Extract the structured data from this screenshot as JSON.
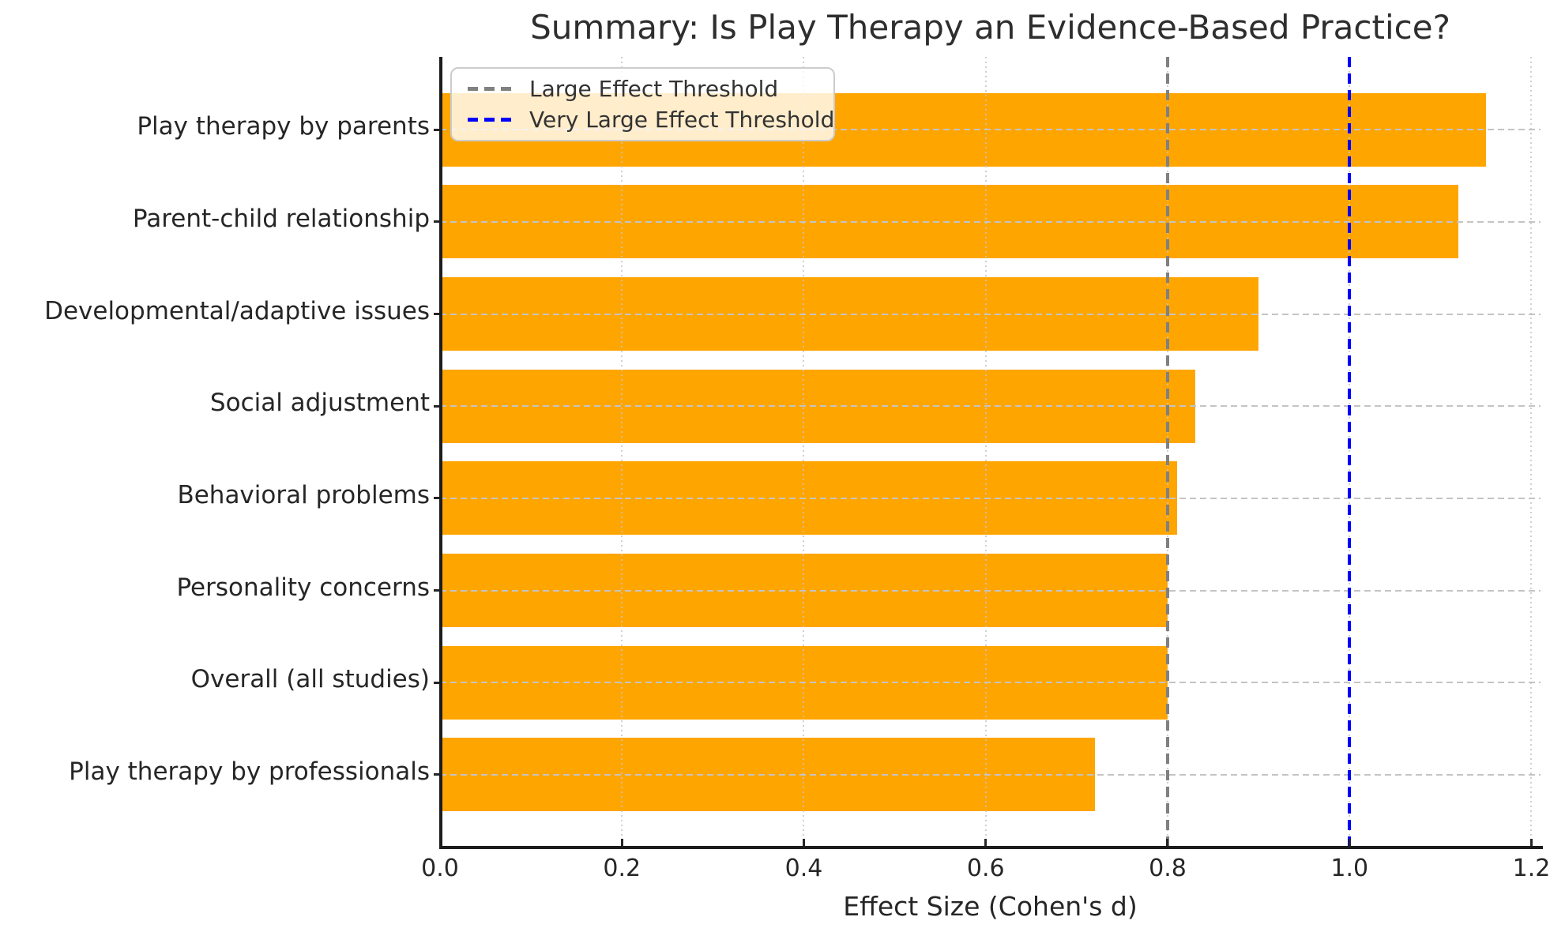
{
  "chart_data": {
    "type": "bar",
    "orientation": "horizontal",
    "title": "Summary: Is Play Therapy an Evidence-Based Practice?",
    "xlabel": "Effect Size (Cohen's d)",
    "categories": [
      "Play therapy by parents",
      "Parent-child relationship",
      "Developmental/adaptive issues",
      "Social adjustment",
      "Behavioral problems",
      "Personality concerns",
      "Overall (all studies)",
      "Play therapy by professionals"
    ],
    "values": [
      1.15,
      1.12,
      0.9,
      0.83,
      0.81,
      0.8,
      0.8,
      0.72
    ],
    "bar_color": "#FFA500",
    "xlim": [
      0,
      1.21
    ],
    "xticks": [
      0.0,
      0.2,
      0.4,
      0.6,
      0.8,
      1.0,
      1.2
    ],
    "xtick_labels": [
      "0.0",
      "0.2",
      "0.4",
      "0.6",
      "0.8",
      "1.0",
      "1.2"
    ],
    "grid": true,
    "legend_position": "upper-left",
    "reference_lines": [
      {
        "label": "Large Effect Threshold",
        "value": 0.8,
        "color": "#808080",
        "style": "dashed"
      },
      {
        "label": "Very Large Effect Threshold",
        "value": 1.0,
        "color": "#0000FF",
        "style": "dashed"
      }
    ]
  }
}
